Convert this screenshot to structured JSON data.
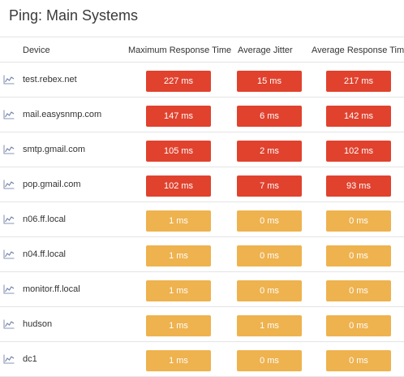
{
  "title": "Ping: Main Systems",
  "colors": {
    "red": "#e0422e",
    "amber": "#eeb24e"
  },
  "row_icon": "line-chart-icon",
  "headers": {
    "device": "Device",
    "max": "Maximum Response Time",
    "jitter": "Average Jitter",
    "avg": "Average Response Time"
  },
  "rows": [
    {
      "device": "test.rebex.net",
      "max": "227 ms",
      "jitter": "15 ms",
      "avg": "217 ms",
      "status": "red"
    },
    {
      "device": "mail.easysnmp.com",
      "max": "147 ms",
      "jitter": "6 ms",
      "avg": "142 ms",
      "status": "red"
    },
    {
      "device": "smtp.gmail.com",
      "max": "105 ms",
      "jitter": "2 ms",
      "avg": "102 ms",
      "status": "red"
    },
    {
      "device": "pop.gmail.com",
      "max": "102 ms",
      "jitter": "7 ms",
      "avg": "93 ms",
      "status": "red"
    },
    {
      "device": "n06.ff.local",
      "max": "1 ms",
      "jitter": "0 ms",
      "avg": "0 ms",
      "status": "amber"
    },
    {
      "device": "n04.ff.local",
      "max": "1 ms",
      "jitter": "0 ms",
      "avg": "0 ms",
      "status": "amber"
    },
    {
      "device": "monitor.ff.local",
      "max": "1 ms",
      "jitter": "0 ms",
      "avg": "0 ms",
      "status": "amber"
    },
    {
      "device": "hudson",
      "max": "1 ms",
      "jitter": "1 ms",
      "avg": "0 ms",
      "status": "amber"
    },
    {
      "device": "dc1",
      "max": "1 ms",
      "jitter": "0 ms",
      "avg": "0 ms",
      "status": "amber"
    }
  ]
}
